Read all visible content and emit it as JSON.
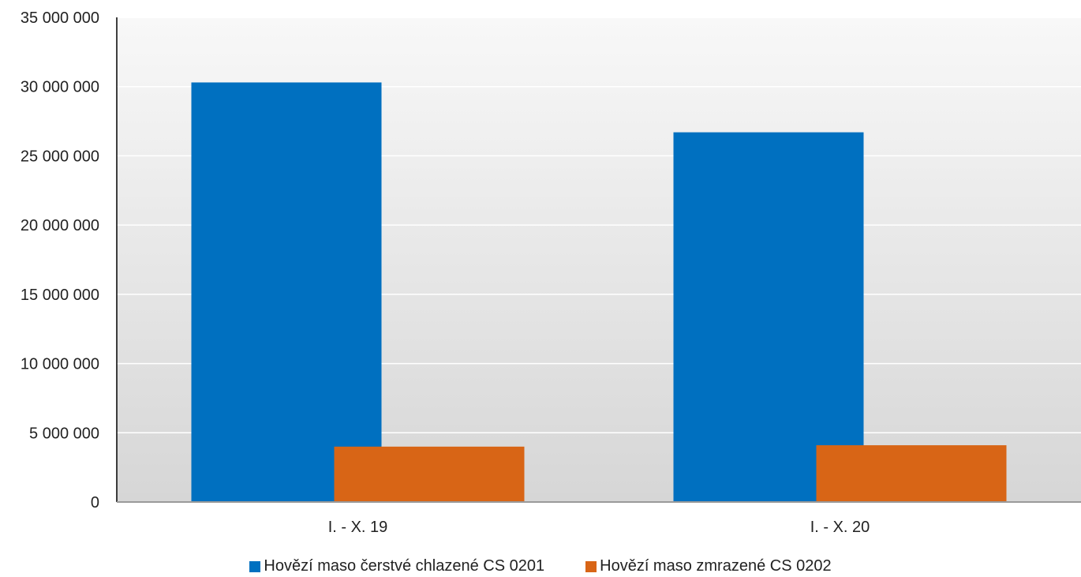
{
  "chart_data": {
    "type": "bar",
    "categories": [
      "I. - X. 19",
      "I. - X. 20"
    ],
    "series": [
      {
        "name": "Hovězí maso čerstvé chlazené CS 0201",
        "values": [
          30300000,
          26700000
        ],
        "color": "#0070C0"
      },
      {
        "name": "Hovězí maso zmrazené CS 0202",
        "values": [
          4000000,
          4100000
        ],
        "color": "#D86516"
      }
    ],
    "ylim": [
      0,
      35000000
    ],
    "yticks": [
      "0",
      "5 000 000",
      "10 000 000",
      "15 000 000",
      "20 000 000",
      "25 000 000",
      "30 000 000",
      "35 000 000"
    ],
    "ytick_values": [
      0,
      5000000,
      10000000,
      15000000,
      20000000,
      25000000,
      30000000,
      35000000
    ],
    "grid": true,
    "legend_position": "bottom",
    "title": "",
    "xlabel": "",
    "ylabel": ""
  }
}
